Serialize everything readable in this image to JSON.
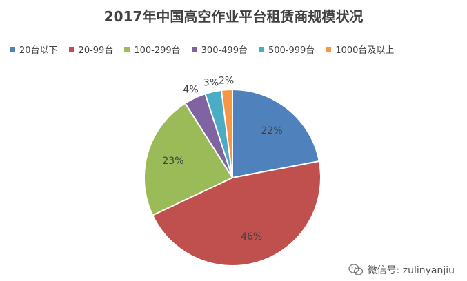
{
  "chart_data": {
    "type": "pie",
    "title": "2017年中国高空作业平台租赁商规模状况",
    "categories": [
      "20台以下",
      "20-99台",
      "100-299台",
      "300-499台",
      "500-999台",
      "1000台及以上"
    ],
    "values": [
      22,
      46,
      23,
      4,
      3,
      2
    ],
    "data_labels": [
      "22%",
      "46%",
      "23%",
      "4%",
      "3%",
      "2%"
    ],
    "colors": [
      "#4F81BD",
      "#C0504D",
      "#9BBB59",
      "#8064A2",
      "#4BACC6",
      "#F79646"
    ],
    "legend_position": "top",
    "start_angle_deg": 0,
    "direction": "clockwise"
  },
  "watermark": {
    "text": "微信号: zulinyanjiu",
    "icon": "wechat-icon"
  }
}
